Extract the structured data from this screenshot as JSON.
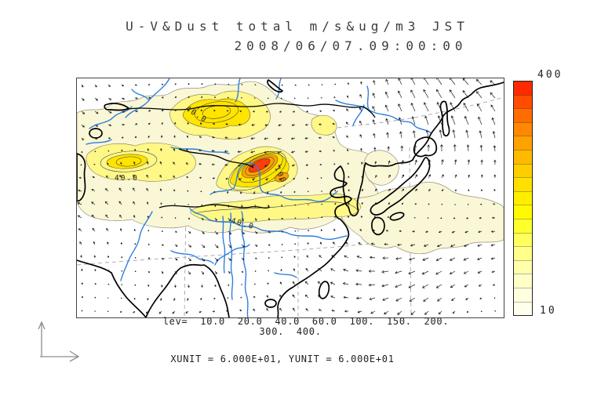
{
  "title": {
    "line1": "U-V&Dust total m/s&ug/m3 JST",
    "line2": "2008/06/07.09:00:00"
  },
  "map": {
    "contour_labels": [
      "40.0",
      "40.0",
      "40.0",
      "100."
    ]
  },
  "colorbar": {
    "max_label": "400",
    "min_label": "10",
    "colors_top_to_bottom": [
      "#FF2A00",
      "#FF4C00",
      "#FF6C00",
      "#FF8800",
      "#FFA200",
      "#FFBA00",
      "#FFCE00",
      "#FFE000",
      "#FFEE00",
      "#FFFA00",
      "#FFFF2E",
      "#FFFF5E",
      "#FFFF8A",
      "#FFFFAC",
      "#FFFFC8",
      "#FFFFDE",
      "#FFFFEE"
    ]
  },
  "legend": {
    "lev_line1": "lev=  10.0  20.0  40.0  60.0  100.  150.  200.",
    "lev_line2": "300.  400.",
    "units_line": "XUNIT = 6.000E+01, YUNIT = 6.000E+01"
  },
  "chart_data": {
    "type": "heatmap",
    "title": "U-V&Dust total m/s&ug/m3 JST",
    "subtitle": "2008/06/07.09:00:00",
    "field": "Dust total concentration (ug/m3) shown as filled contours",
    "vector_overlay": "U-V wind vectors (m/s) on regular grid",
    "contour_levels": [
      10.0,
      20.0,
      40.0,
      60.0,
      100,
      150,
      200,
      300,
      400
    ],
    "colorbar": {
      "min": 10,
      "max": 400,
      "orientation": "vertical",
      "position": "right",
      "low_color": "#FFFFEE",
      "high_color": "#FF2A00"
    },
    "xunit": "6.000E+01",
    "yunit": "6.000E+01",
    "visible_contour_labels": [
      "40.0",
      "100."
    ],
    "region_shown": "East Asia (dust plume maximum over north-central China)",
    "grid": "dashed graticule lines",
    "timestamp": "2008/06/07 09:00:00 JST"
  }
}
